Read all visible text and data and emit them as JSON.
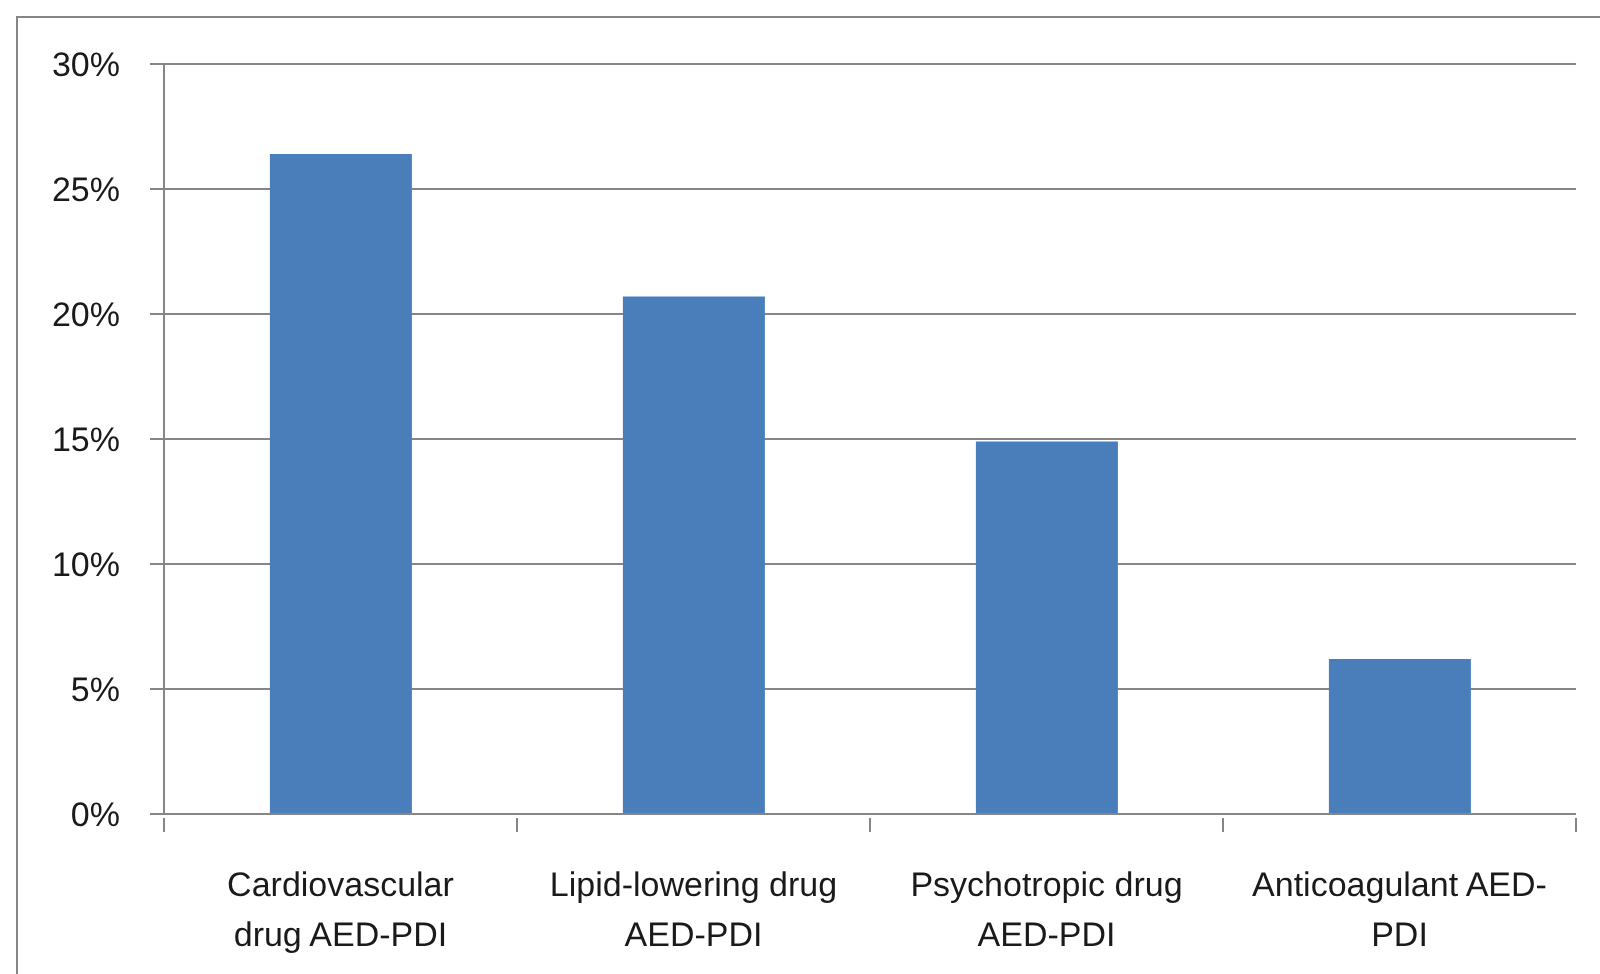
{
  "chart_data": {
    "type": "bar",
    "categories": [
      "Cardiovascular drug AED-PDI",
      "Lipid-lowering drug AED-PDI",
      "Psychotropic drug AED-PDI",
      "Anticoagulant AED-PDI"
    ],
    "values": [
      26.4,
      20.7,
      14.9,
      6.2
    ],
    "color": "#4a7ebb",
    "ylim": [
      0,
      30
    ],
    "yticks": [
      {
        "value": 0,
        "label": "0%"
      },
      {
        "value": 5,
        "label": "5%"
      },
      {
        "value": 10,
        "label": "10%"
      },
      {
        "value": 15,
        "label": "15%"
      },
      {
        "value": 20,
        "label": "20%"
      },
      {
        "value": 25,
        "label": "25%"
      },
      {
        "value": 30,
        "label": "30%"
      }
    ],
    "grid": "y"
  }
}
